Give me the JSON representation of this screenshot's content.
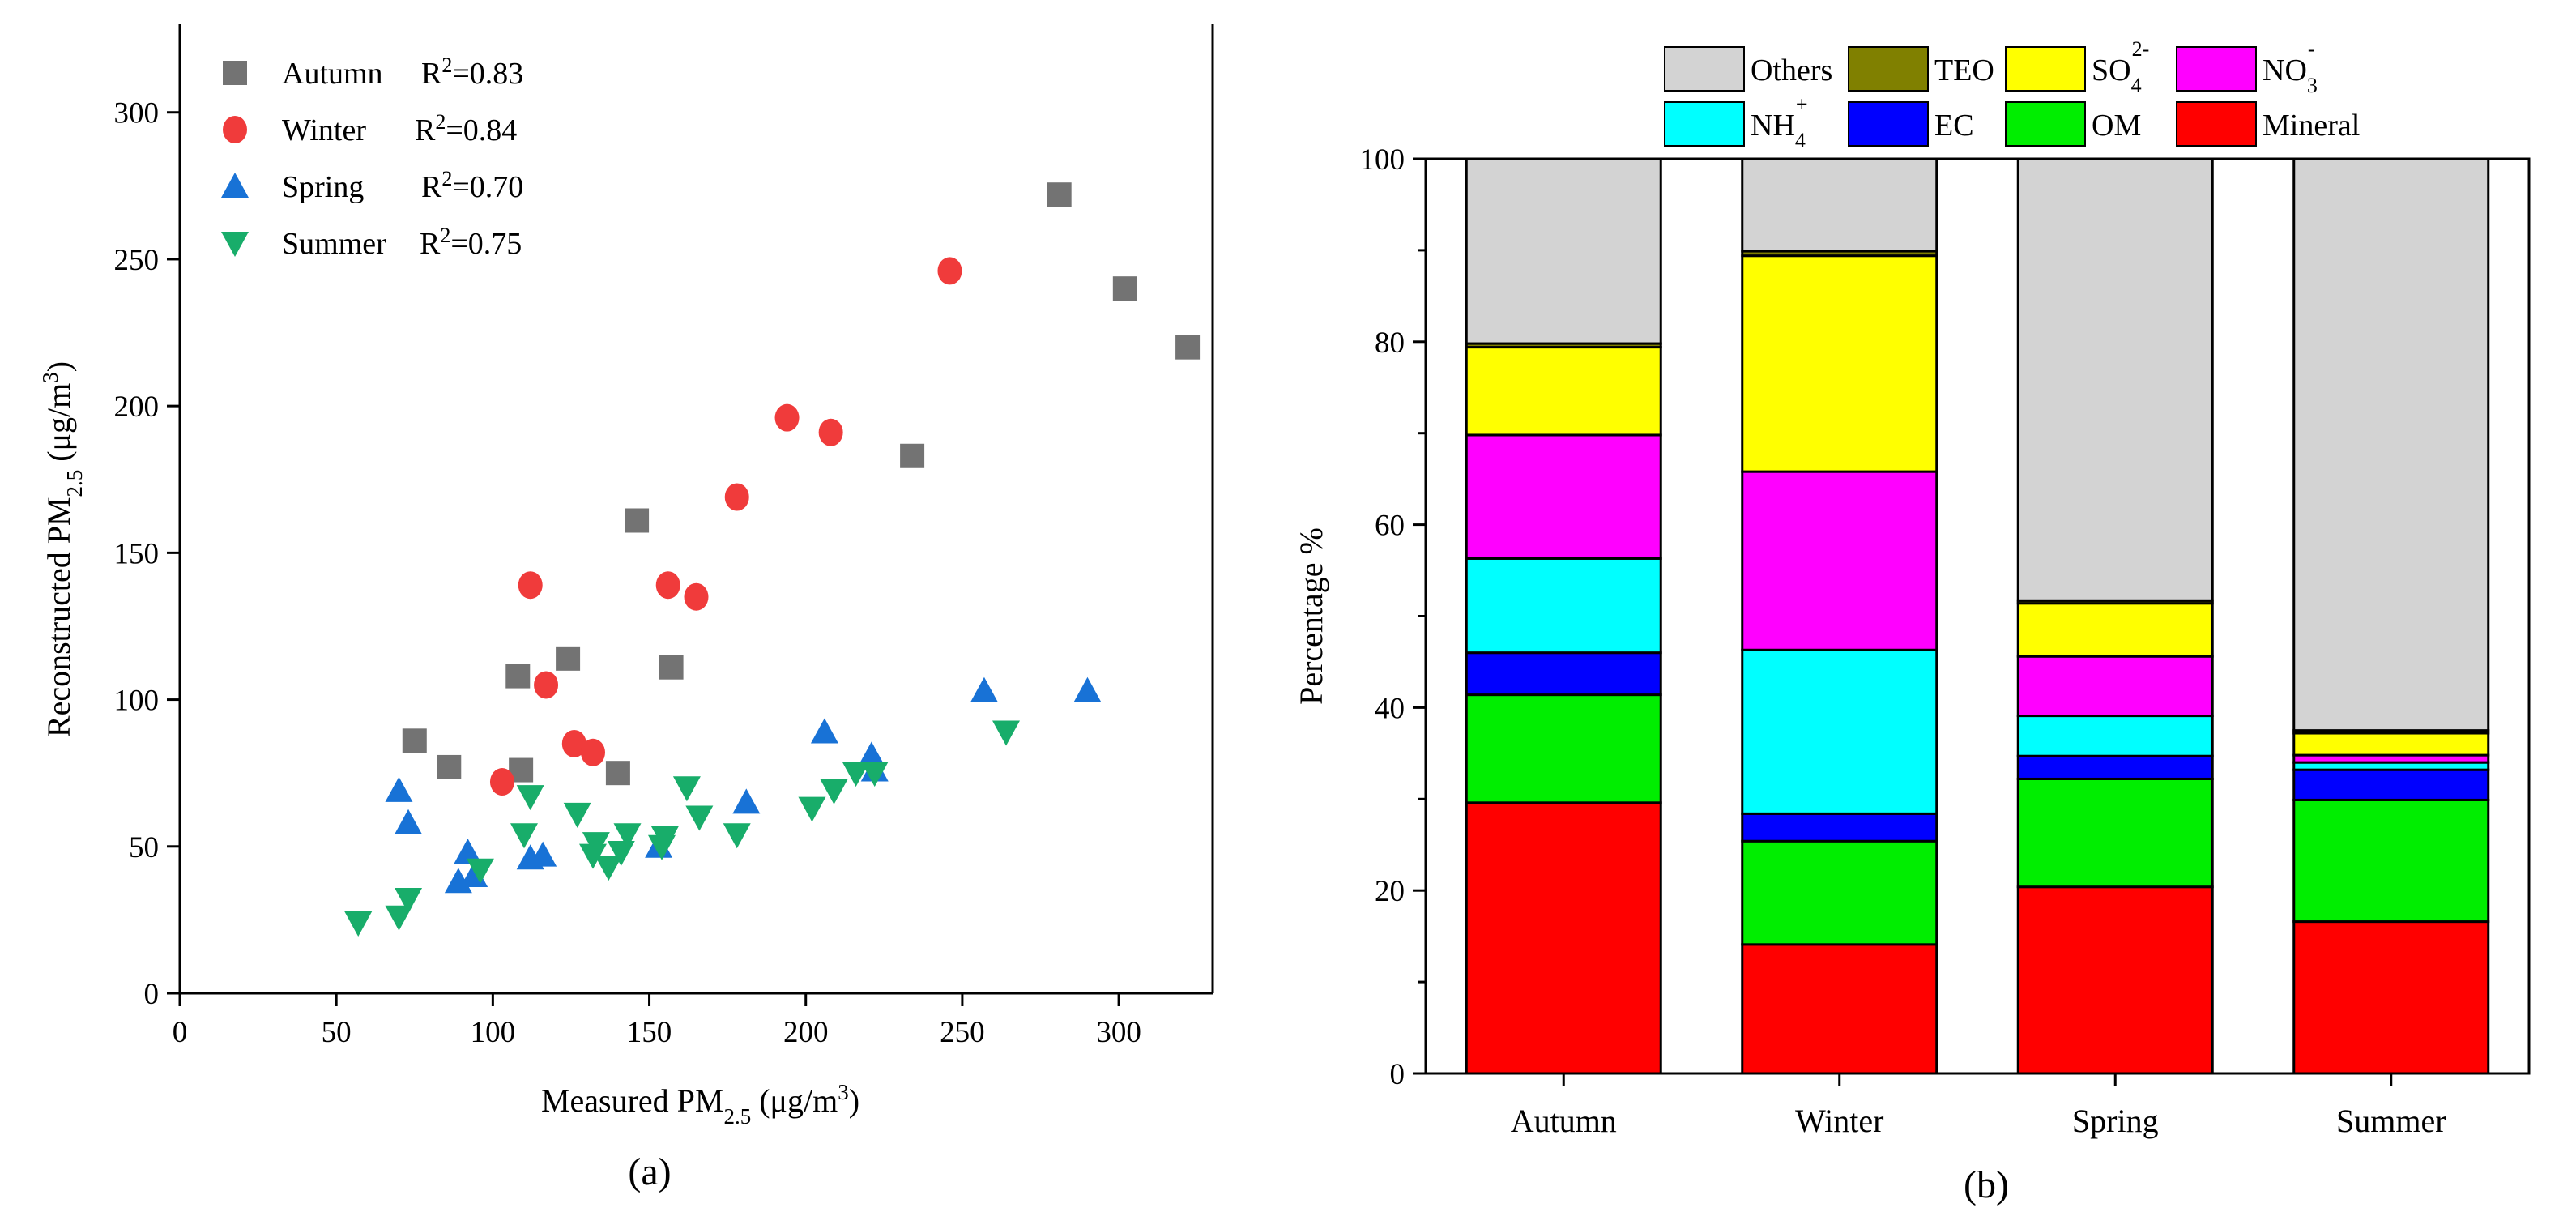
{
  "chart_data": [
    {
      "type": "scatter",
      "panel_label": "(a)",
      "xlabel": {
        "main": "Measured PM",
        "sub": "2.5",
        "unit_pre": " (μg/m",
        "unit_sup": "3",
        "unit_post": ")"
      },
      "ylabel": {
        "main": "Reconstructed PM",
        "sub": "2.5",
        "unit_pre": " (μg/m",
        "unit_sup": "3",
        "unit_post": ")"
      },
      "xlim": [
        0,
        330
      ],
      "ylim": [
        0,
        330
      ],
      "xticks": [
        0,
        50,
        100,
        150,
        200,
        250,
        300
      ],
      "yticks": [
        0,
        50,
        100,
        150,
        200,
        250,
        300
      ],
      "legend_position": "top-left",
      "series": [
        {
          "name": "Autumn",
          "r2_label": "R",
          "r2_sup": "2",
          "r2_value": "=0.83",
          "marker": "square",
          "color": "#737373",
          "points": [
            [
              75,
              86
            ],
            [
              86,
              77
            ],
            [
              108,
              108
            ],
            [
              109,
              76
            ],
            [
              124,
              114
            ],
            [
              140,
              75
            ],
            [
              146,
              161
            ],
            [
              157,
              111
            ],
            [
              234,
              183
            ],
            [
              281,
              272
            ],
            [
              302,
              240
            ],
            [
              322,
              220
            ]
          ]
        },
        {
          "name": "Winter",
          "r2_label": "R",
          "r2_sup": "2",
          "r2_value": "=0.84",
          "marker": "circle",
          "color": "#f03b3b",
          "points": [
            [
              103,
              72
            ],
            [
              112,
              139
            ],
            [
              117,
              105
            ],
            [
              126,
              85
            ],
            [
              132,
              82
            ],
            [
              156,
              139
            ],
            [
              165,
              135
            ],
            [
              178,
              169
            ],
            [
              194,
              196
            ],
            [
              208,
              191
            ],
            [
              246,
              246
            ]
          ]
        },
        {
          "name": "Spring",
          "r2_label": "R",
          "r2_sup": "2",
          "r2_value": "=0.70",
          "marker": "triangle-up",
          "color": "#1872d6",
          "points": [
            [
              70,
              69
            ],
            [
              73,
              58
            ],
            [
              89,
              38
            ],
            [
              92,
              48
            ],
            [
              94,
              40
            ],
            [
              112,
              46
            ],
            [
              116,
              47
            ],
            [
              153,
              50
            ],
            [
              181,
              65
            ],
            [
              206,
              89
            ],
            [
              221,
              81
            ],
            [
              222,
              76
            ],
            [
              257,
              103
            ],
            [
              290,
              103
            ]
          ]
        },
        {
          "name": "Summer",
          "r2_label": "R",
          "r2_sup": "2",
          "r2_value": "=0.75",
          "marker": "triangle-down",
          "color": "#18ad6a",
          "points": [
            [
              57,
              24
            ],
            [
              70,
              26
            ],
            [
              73,
              32
            ],
            [
              96,
              42
            ],
            [
              110,
              54
            ],
            [
              112,
              67
            ],
            [
              127,
              61
            ],
            [
              132,
              47
            ],
            [
              133,
              51
            ],
            [
              137,
              43
            ],
            [
              141,
              48
            ],
            [
              143,
              54
            ],
            [
              154,
              50
            ],
            [
              155,
              53
            ],
            [
              162,
              70
            ],
            [
              166,
              60
            ],
            [
              178,
              54
            ],
            [
              202,
              63
            ],
            [
              209,
              69
            ],
            [
              216,
              75
            ],
            [
              222,
              75
            ],
            [
              264,
              89
            ]
          ]
        }
      ]
    },
    {
      "type": "bar",
      "stacked": true,
      "panel_label": "(b)",
      "ylabel": "Percentage  %",
      "ylim": [
        0,
        100
      ],
      "yticks": [
        0,
        20,
        40,
        60,
        80,
        100
      ],
      "categories": [
        "Autumn",
        "Winter",
        "Spring",
        "Summer"
      ],
      "legend_position": "top",
      "series": [
        {
          "name": "Mineral",
          "color": "#ff0000",
          "values": [
            29.6,
            14.1,
            20.4,
            16.6
          ]
        },
        {
          "name": "OM",
          "color": "#00ee00",
          "values": [
            11.8,
            11.3,
            11.8,
            13.3
          ]
        },
        {
          "name": "EC",
          "color": "#0000ff",
          "values": [
            4.6,
            3.0,
            2.5,
            3.3
          ]
        },
        {
          "name": "NH",
          "sub": "4",
          "sup": "+",
          "color": "#00ffff",
          "values": [
            10.3,
            17.9,
            4.4,
            0.8
          ]
        },
        {
          "name": "NO",
          "sub": "3",
          "sup": "-",
          "color": "#ff00ff",
          "values": [
            13.5,
            19.5,
            6.5,
            0.8
          ]
        },
        {
          "name": "SO",
          "sub": "4",
          "sup": "2-",
          "color": "#ffff00",
          "values": [
            9.6,
            23.6,
            5.8,
            2.4
          ]
        },
        {
          "name": "TEO",
          "color": "#808000",
          "values": [
            0.4,
            0.5,
            0.3,
            0.3
          ]
        },
        {
          "name": "Others",
          "color": "#d3d3d3",
          "values": [
            20.2,
            10.1,
            48.3,
            62.5
          ]
        }
      ],
      "legend_order": [
        "Others",
        "TEO",
        "SO",
        "NO",
        "NH",
        "EC",
        "OM",
        "Mineral"
      ]
    }
  ]
}
